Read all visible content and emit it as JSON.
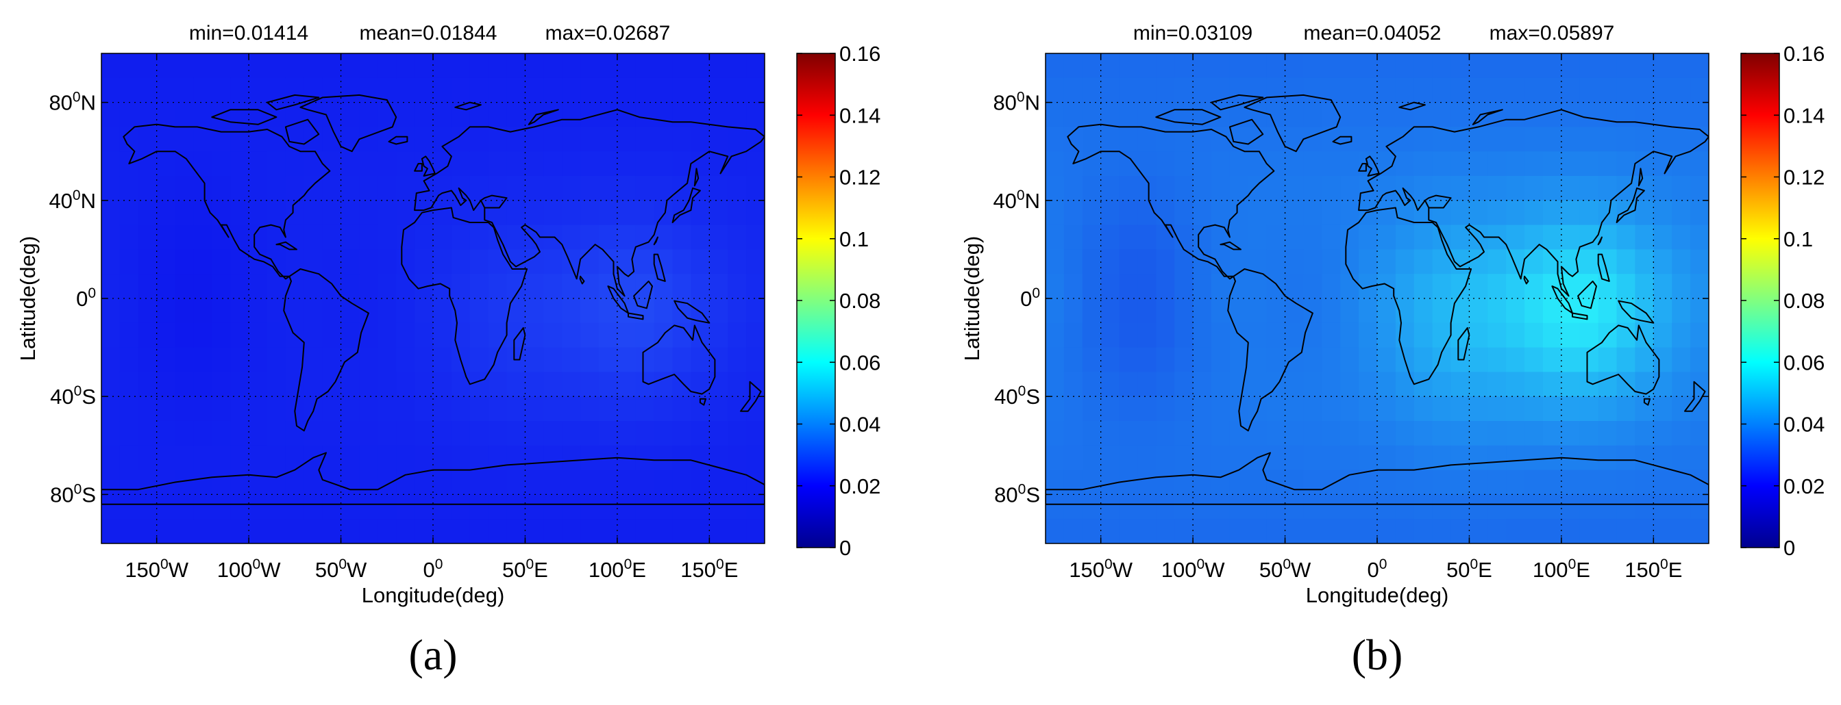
{
  "colormap": [
    "#00008f",
    "#0000ff",
    "#0080ff",
    "#00ffff",
    "#80ff80",
    "#ffff00",
    "#ff8000",
    "#ff0000",
    "#800000"
  ],
  "background_colors": {
    "a": "#1428f0",
    "b": "#1e88f0"
  },
  "colorbar": {
    "ticks": [
      "0",
      "0.02",
      "0.04",
      "0.06",
      "0.08",
      "0.1",
      "0.12",
      "0.14",
      "0.16"
    ]
  },
  "axes": {
    "xlabel": "Longitude(deg)",
    "ylabel": "Latitude(deg)",
    "x_ticks": [
      {
        "deg": "150",
        "hemi": "W",
        "lon": -150
      },
      {
        "deg": "100",
        "hemi": "W",
        "lon": -100
      },
      {
        "deg": "50",
        "hemi": "W",
        "lon": -50
      },
      {
        "deg": "0",
        "hemi": "",
        "lon": 0
      },
      {
        "deg": "50",
        "hemi": "E",
        "lon": 50
      },
      {
        "deg": "100",
        "hemi": "E",
        "lon": 100
      },
      {
        "deg": "150",
        "hemi": "E",
        "lon": 150
      }
    ],
    "y_ticks": [
      {
        "deg": "80",
        "hemi": "N",
        "lat": 80
      },
      {
        "deg": "40",
        "hemi": "N",
        "lat": 40
      },
      {
        "deg": "0",
        "hemi": "",
        "lat": 0
      },
      {
        "deg": "40",
        "hemi": "S",
        "lat": -40
      },
      {
        "deg": "80",
        "hemi": "S",
        "lat": -80
      }
    ],
    "degree_symbol": "0"
  },
  "panels": [
    {
      "id": "a",
      "caption": "(a)",
      "stats": {
        "min": "min=0.01414",
        "mean": "mean=0.01844",
        "max": "max=0.02687"
      }
    },
    {
      "id": "b",
      "caption": "(b)",
      "stats": {
        "min": "min=0.03109",
        "mean": "mean=0.04052",
        "max": "max=0.05897"
      }
    }
  ]
}
